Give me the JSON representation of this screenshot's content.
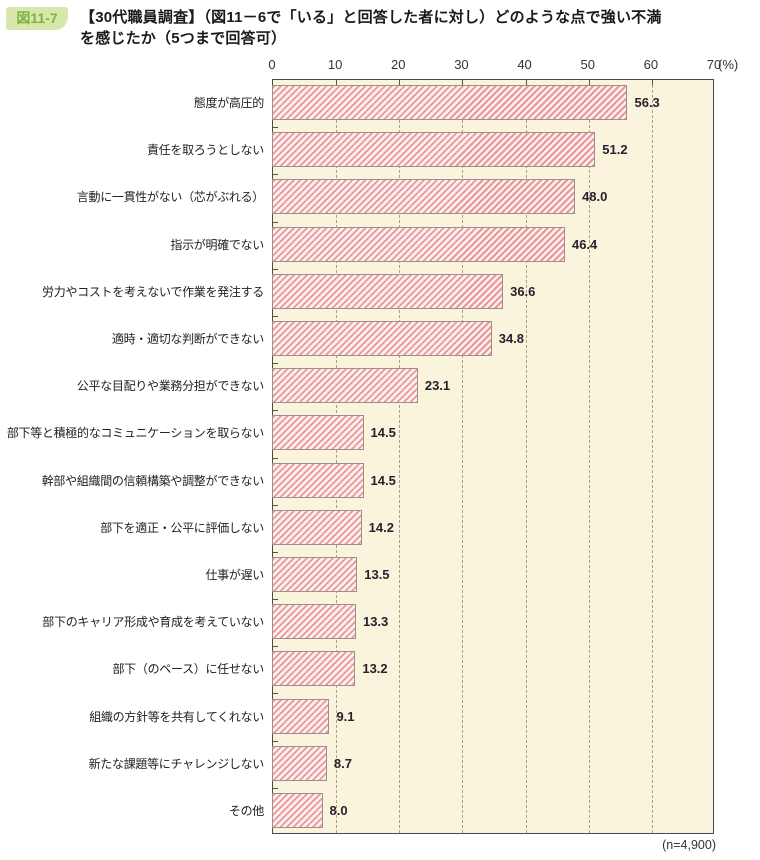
{
  "figure": {
    "badge": "図11-7",
    "title": {
      "line1": "【30代職員調査】（図11－6で「いる」と回答した者に対し）どのような点で強い不満",
      "line2": "を感じたか（5つまで回答可）"
    }
  },
  "chart_data": {
    "type": "bar",
    "orientation": "horizontal",
    "title": "【30代職員調査】（図11－6で「いる」と回答した者に対し）どのような点で強い不満を感じたか（5つまで回答可）",
    "categories": [
      "態度が高圧的",
      "責任を取ろうとしない",
      "言動に一貫性がない（芯がぶれる）",
      "指示が明確でない",
      "労力やコストを考えないで作業を発注する",
      "適時・適切な判断ができない",
      "公平な目配りや業務分担ができない",
      "部下等と積極的なコミュニケーションを取らない",
      "幹部や組織間の信頼構築や調整ができない",
      "部下を適正・公平に評価しない",
      "仕事が遅い",
      "部下のキャリア形成や育成を考えていない",
      "部下（のペース）に任せない",
      "組織の方針等を共有してくれない",
      "新たな課題等にチャレンジしない",
      "その他"
    ],
    "values": [
      56.3,
      51.2,
      48.0,
      46.4,
      36.6,
      34.8,
      23.1,
      14.5,
      14.5,
      14.2,
      13.5,
      13.3,
      13.2,
      9.1,
      8.7,
      8.0
    ],
    "xlim": [
      0,
      70
    ],
    "x_ticks": [
      0,
      10,
      20,
      30,
      40,
      50,
      60,
      70
    ],
    "x_unit": "(%)",
    "grid": "vertical-dashed",
    "legend": "none",
    "n_label": "(n=4,900)"
  },
  "colors": {
    "plot_bg": "#fbf4dc",
    "plot_border": "#4a4a4a",
    "grid": "#b29b7e",
    "bar_stripe": "#e9969c",
    "bar_bg": "#fdf0ec",
    "bar_border": "#9b9090",
    "value_text": "#23232d",
    "badge_bg": "#d8e7ac",
    "badge_text": "#7cb440"
  }
}
